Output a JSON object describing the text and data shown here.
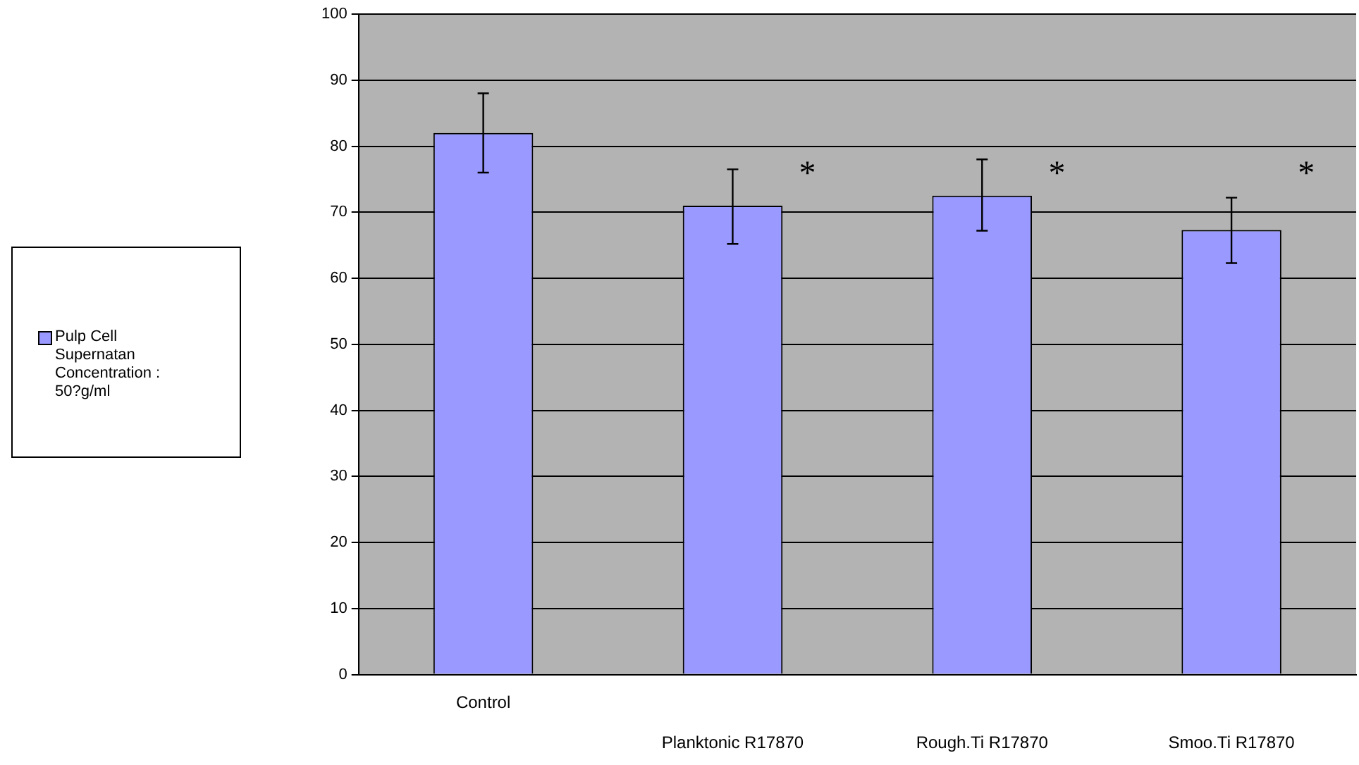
{
  "chart_data": {
    "type": "bar",
    "categories": [
      "Control",
      "Planktonic R17870",
      "Rough.Ti R17870",
      "Smoo.Ti R17870"
    ],
    "series": [
      {
        "name": "Pulp Cell Supernatan Concentration : 50?g/ml",
        "color": "#9999ff",
        "values": [
          82,
          71,
          72.5,
          67.3
        ],
        "errors": [
          [
            76,
            88
          ],
          [
            65.2,
            76.5
          ],
          [
            67.2,
            78
          ],
          [
            62.3,
            72.2
          ]
        ]
      }
    ],
    "ylim": [
      0,
      100
    ],
    "yticks": [
      0,
      10,
      20,
      30,
      40,
      50,
      60,
      70,
      80,
      90,
      100
    ],
    "grid": "y",
    "legend": "left",
    "annotations": [
      "*",
      "*",
      "*"
    ]
  }
}
